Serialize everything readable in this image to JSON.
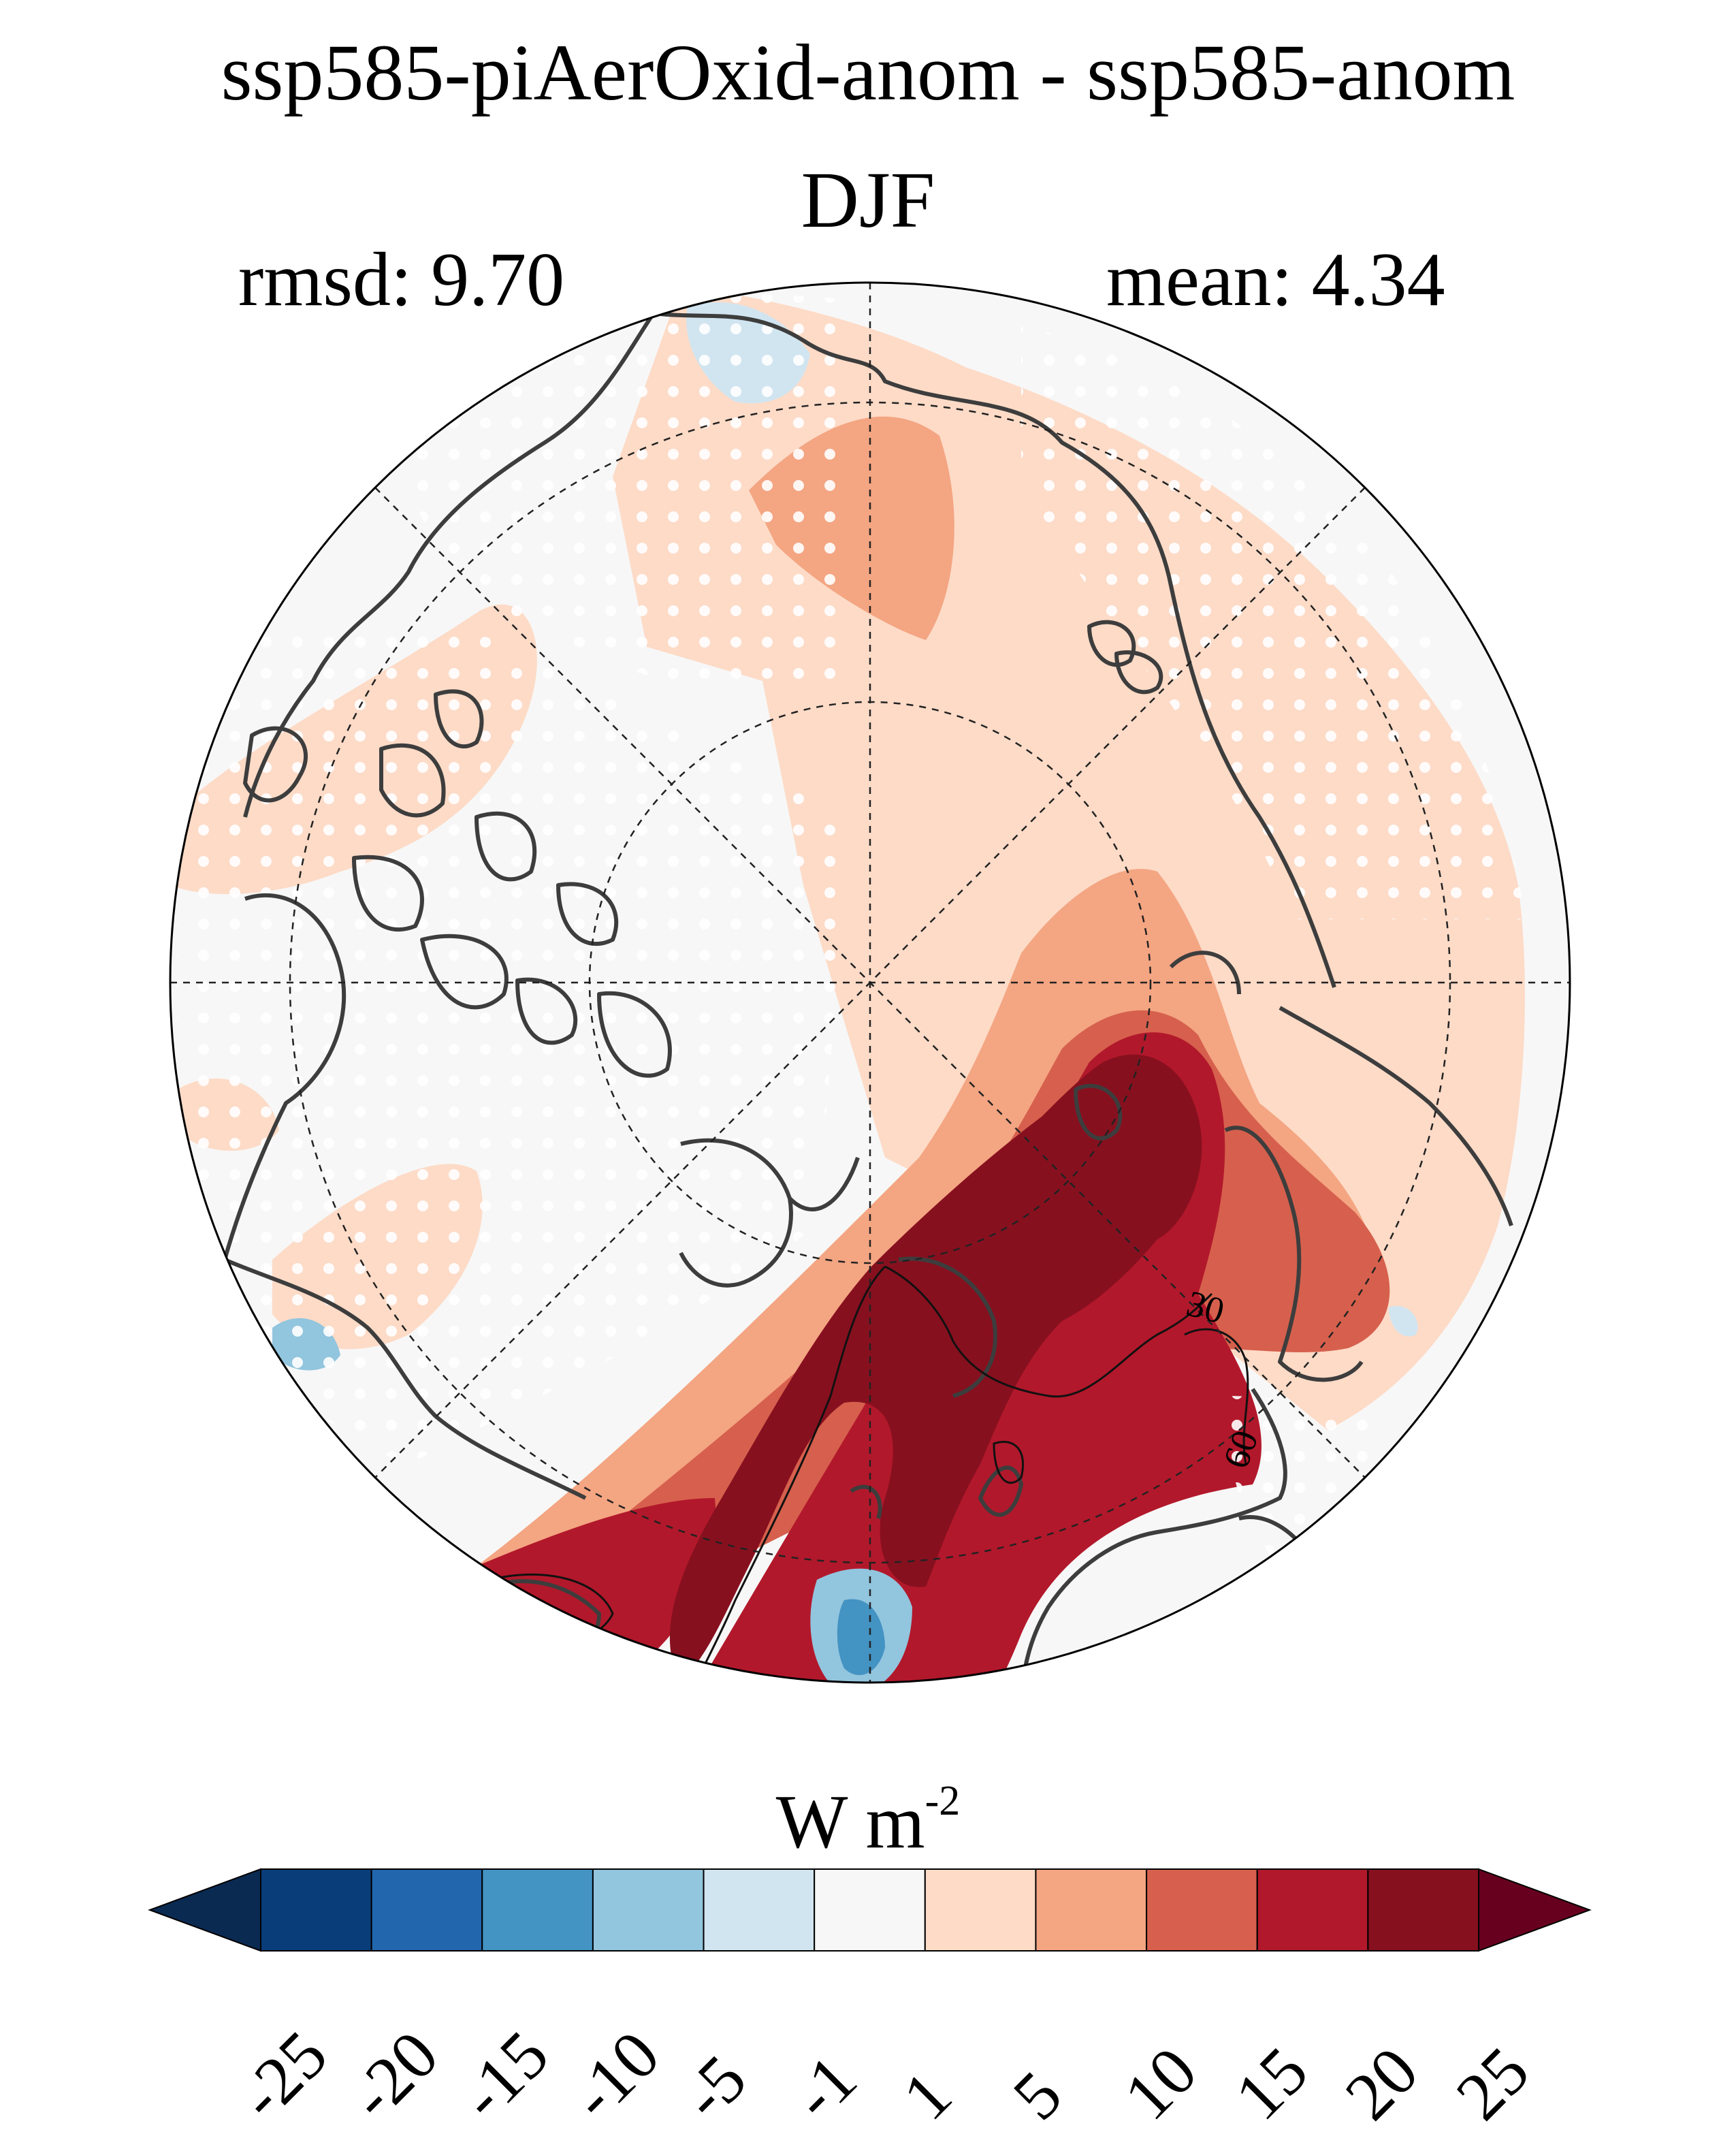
{
  "header": {
    "title": "ssp585-piAerOxid-anom - ssp585-anom",
    "season": "DJF",
    "rmsd_label": "rmsd: 9.70",
    "mean_label": "mean: 4.34"
  },
  "map": {
    "projection": "north-polar-stereographic",
    "contour_labels": [
      "30",
      "60"
    ],
    "stippling": true
  },
  "colorbar": {
    "units_main": "W m",
    "units_exp": "-2",
    "ticks": [
      "-25",
      "-20",
      "-15",
      "-10",
      "-5",
      "-1",
      "1",
      "5",
      "10",
      "15",
      "20",
      "25"
    ],
    "under_color": "#0a2a52",
    "over_color": "#67001f",
    "colors": [
      "#093d79",
      "#2266ad",
      "#4393c3",
      "#92c5de",
      "#d1e5f0",
      "#f7f7f7",
      "#fddbc7",
      "#f4a582",
      "#d6604d",
      "#b2182b",
      "#87101f"
    ]
  }
}
